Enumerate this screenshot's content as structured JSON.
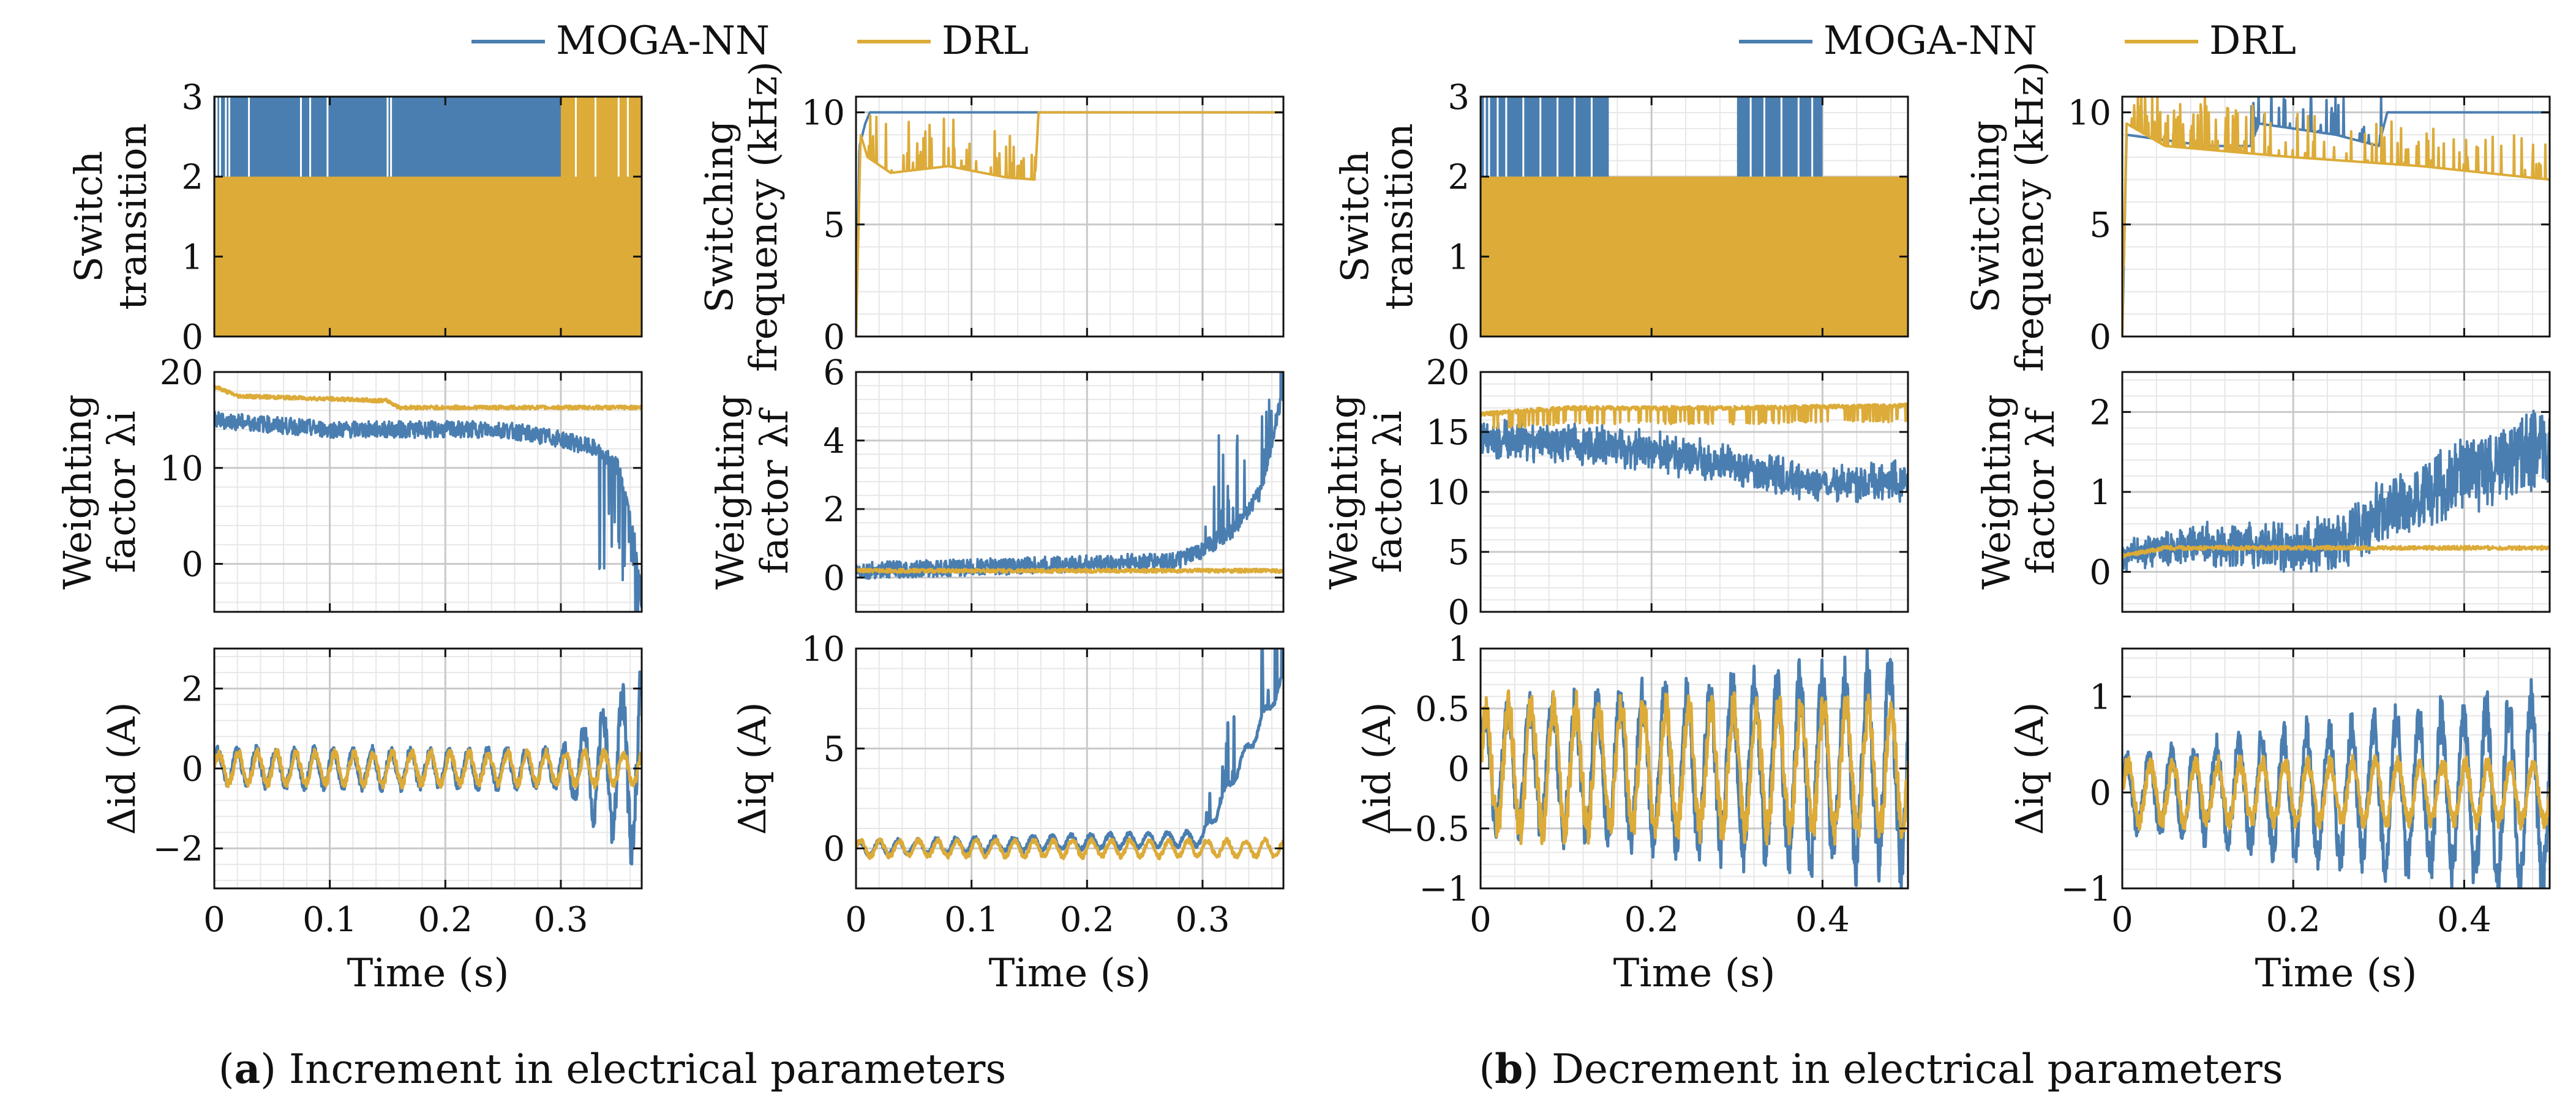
{
  "colors": {
    "moga_nn": "#4a7eb0",
    "drl": "#dcab38",
    "grid_major": "#c9c9c9",
    "grid_minor": "#e7e7e7"
  },
  "legend": {
    "series_a": "MOGA-NN",
    "series_b": "DRL"
  },
  "captions": {
    "a": {
      "letter": "a",
      "text": "Increment in electrical parameters"
    },
    "b": {
      "letter": "b",
      "text": "Decrement in electrical parameters"
    }
  },
  "x_axis_label": "Time (s)",
  "chart_data": [
    {
      "id": "a-switch",
      "type": "area",
      "panel": "a",
      "ylabel_lines": [
        "Switch",
        "transition"
      ],
      "xlim": [
        0,
        0.37
      ],
      "ylim": [
        0,
        3
      ],
      "yticks": [
        0,
        1,
        2,
        3
      ],
      "xticks": [
        0,
        0.1,
        0.2,
        0.3
      ],
      "series": [
        {
          "name": "MOGA-NN",
          "description": "switches between 2 and 3 for t < 0.30 s",
          "values": [
            [
              0,
              3
            ],
            [
              0.3,
              3
            ]
          ]
        },
        {
          "name": "DRL",
          "description": "switches between 0 and 2 throughout; reaches 3 after 0.30 s",
          "values": [
            [
              0,
              2
            ],
            [
              0.3,
              2
            ],
            [
              0.3,
              3
            ],
            [
              0.37,
              3
            ]
          ]
        }
      ]
    },
    {
      "id": "a-freq",
      "type": "line",
      "panel": "a",
      "ylabel_lines": [
        "Switching",
        "frequency (kHz)"
      ],
      "xlim": [
        0,
        0.37
      ],
      "ylim": [
        0,
        10.7
      ],
      "yticks": [
        0,
        5,
        10
      ],
      "xticks": [
        0,
        0.1,
        0.2,
        0.3
      ],
      "series": [
        {
          "name": "MOGA-NN",
          "values": [
            [
              0,
              0
            ],
            [
              0.003,
              8.5
            ],
            [
              0.008,
              9.5
            ],
            [
              0.012,
              10
            ],
            [
              0.37,
              10
            ]
          ]
        },
        {
          "name": "DRL",
          "values": [
            [
              0,
              0
            ],
            [
              0.004,
              9
            ],
            [
              0.01,
              8
            ],
            [
              0.03,
              7.3
            ],
            [
              0.08,
              7.6
            ],
            [
              0.13,
              7.1
            ],
            [
              0.155,
              7
            ],
            [
              0.158,
              10
            ],
            [
              0.37,
              10
            ]
          ]
        }
      ]
    },
    {
      "id": "a-lambda-i",
      "type": "line",
      "panel": "a",
      "ylabel_lines": [
        "Weighting",
        "factor λi"
      ],
      "xlim": [
        0,
        0.37
      ],
      "ylim": [
        -5,
        20
      ],
      "yticks": [
        0,
        10,
        20
      ],
      "xticks": [
        0,
        0.1,
        0.2,
        0.3
      ],
      "series": [
        {
          "name": "MOGA-NN",
          "values": [
            [
              0,
              15
            ],
            [
              0.1,
              14
            ],
            [
              0.2,
              14
            ],
            [
              0.25,
              14
            ],
            [
              0.3,
              13
            ],
            [
              0.33,
              12
            ],
            [
              0.35,
              10
            ],
            [
              0.365,
              2
            ],
            [
              0.37,
              -4
            ]
          ]
        },
        {
          "name": "DRL",
          "values": [
            [
              0,
              18.5
            ],
            [
              0.02,
              17.5
            ],
            [
              0.15,
              17
            ],
            [
              0.16,
              16.3
            ],
            [
              0.37,
              16.3
            ]
          ]
        }
      ]
    },
    {
      "id": "a-lambda-f",
      "type": "line",
      "panel": "a",
      "ylabel_lines": [
        "Weighting",
        "factor λf"
      ],
      "xlim": [
        0,
        0.37
      ],
      "ylim": [
        -1,
        6
      ],
      "yticks": [
        0,
        2,
        4,
        6
      ],
      "xticks": [
        0,
        0.1,
        0.2,
        0.3
      ],
      "series": [
        {
          "name": "MOGA-NN",
          "values": [
            [
              0,
              0.2
            ],
            [
              0.1,
              0.3
            ],
            [
              0.2,
              0.4
            ],
            [
              0.28,
              0.5
            ],
            [
              0.3,
              0.8
            ],
            [
              0.33,
              1.5
            ],
            [
              0.35,
              2.5
            ],
            [
              0.37,
              5.5
            ]
          ]
        },
        {
          "name": "DRL",
          "values": [
            [
              0,
              0.2
            ],
            [
              0.37,
              0.2
            ]
          ]
        }
      ]
    },
    {
      "id": "a-delta-id",
      "type": "line",
      "panel": "a",
      "ylabel": "Δid (A)",
      "xlim": [
        0,
        0.37
      ],
      "ylim": [
        -3,
        3
      ],
      "yticks": [
        -2,
        0,
        2
      ],
      "xticks": [
        0,
        0.1,
        0.2,
        0.3
      ],
      "xlabel": "Time (s)",
      "series": [
        {
          "name": "MOGA-NN",
          "description": "oscillating ±0.5 A, growing to about ±3 A near 0.37 s",
          "values": [
            [
              0,
              0
            ],
            [
              0.3,
              0
            ],
            [
              0.37,
              0
            ]
          ]
        },
        {
          "name": "DRL",
          "description": "oscillating about ±0.4 A",
          "values": [
            [
              0,
              0
            ],
            [
              0.37,
              0
            ]
          ]
        }
      ]
    },
    {
      "id": "a-delta-iq",
      "type": "line",
      "panel": "a",
      "ylabel": "Δiq (A)",
      "xlim": [
        0,
        0.37
      ],
      "ylim": [
        -2,
        10
      ],
      "yticks": [
        0,
        5,
        10
      ],
      "xticks": [
        0,
        0.1,
        0.2,
        0.3
      ],
      "xlabel": "Time (s)",
      "series": [
        {
          "name": "MOGA-NN",
          "description": "near 0, spikes up to about 8 A after 0.30 s",
          "values": [
            [
              0,
              0
            ],
            [
              0.3,
              0.5
            ],
            [
              0.37,
              8.5
            ]
          ]
        },
        {
          "name": "DRL",
          "description": "oscillating about ±0.4 A",
          "values": [
            [
              0,
              0
            ],
            [
              0.37,
              0
            ]
          ]
        }
      ]
    },
    {
      "id": "b-switch",
      "type": "area",
      "panel": "b",
      "ylabel_lines": [
        "Switch",
        "transition"
      ],
      "xlim": [
        0,
        0.5
      ],
      "ylim": [
        0,
        3
      ],
      "yticks": [
        0,
        1,
        2,
        3
      ],
      "xticks": [
        0,
        0.2,
        0.4
      ],
      "series": [
        {
          "name": "MOGA-NN",
          "description": "reaches 3 during 0–0.15 s and 0.30–0.40 s",
          "values": [
            [
              0,
              3
            ],
            [
              0.15,
              3
            ],
            [
              0.3,
              3
            ],
            [
              0.4,
              3
            ]
          ]
        },
        {
          "name": "DRL",
          "description": "switches between 0 and 2 throughout",
          "values": [
            [
              0,
              2
            ],
            [
              0.5,
              2
            ]
          ]
        }
      ]
    },
    {
      "id": "b-freq",
      "type": "line",
      "panel": "b",
      "ylabel_lines": [
        "Switching",
        "frequency (kHz)"
      ],
      "xlim": [
        0,
        0.5
      ],
      "ylim": [
        0,
        10.7
      ],
      "yticks": [
        0,
        5,
        10
      ],
      "xticks": [
        0,
        0.2,
        0.4
      ],
      "series": [
        {
          "name": "MOGA-NN",
          "values": [
            [
              0,
              0
            ],
            [
              0.005,
              9
            ],
            [
              0.1,
              8.5
            ],
            [
              0.15,
              8.5
            ],
            [
              0.16,
              9.5
            ],
            [
              0.25,
              9
            ],
            [
              0.3,
              8.5
            ],
            [
              0.31,
              10
            ],
            [
              0.5,
              10
            ]
          ]
        },
        {
          "name": "DRL",
          "values": [
            [
              0,
              0
            ],
            [
              0.005,
              9.5
            ],
            [
              0.05,
              8.5
            ],
            [
              0.2,
              8
            ],
            [
              0.35,
              7.6
            ],
            [
              0.5,
              7
            ]
          ]
        }
      ]
    },
    {
      "id": "b-lambda-i",
      "type": "line",
      "panel": "b",
      "ylabel_lines": [
        "Weighting",
        "factor λi"
      ],
      "xlim": [
        0,
        0.5
      ],
      "ylim": [
        0,
        20
      ],
      "yticks": [
        0,
        5,
        10,
        15,
        20
      ],
      "xticks": [
        0,
        0.2,
        0.4
      ],
      "series": [
        {
          "name": "MOGA-NN",
          "values": [
            [
              0,
              14.5
            ],
            [
              0.1,
              14
            ],
            [
              0.2,
              13.5
            ],
            [
              0.3,
              12
            ],
            [
              0.4,
              10.5
            ],
            [
              0.5,
              11
            ]
          ]
        },
        {
          "name": "DRL",
          "values": [
            [
              0,
              16.5
            ],
            [
              0.1,
              17
            ],
            [
              0.3,
              17
            ],
            [
              0.5,
              17.2
            ]
          ]
        }
      ]
    },
    {
      "id": "b-lambda-f",
      "type": "line",
      "panel": "b",
      "ylabel_lines": [
        "Weighting",
        "factor λf"
      ],
      "xlim": [
        0,
        0.5
      ],
      "ylim": [
        -0.5,
        2.5
      ],
      "yticks": [
        0,
        1,
        2
      ],
      "xticks": [
        0,
        0.2,
        0.4
      ],
      "series": [
        {
          "name": "MOGA-NN",
          "values": [
            [
              0,
              0.2
            ],
            [
              0.1,
              0.35
            ],
            [
              0.2,
              0.3
            ],
            [
              0.25,
              0.35
            ],
            [
              0.3,
              0.7
            ],
            [
              0.4,
              1.2
            ],
            [
              0.5,
              1.6
            ]
          ]
        },
        {
          "name": "DRL",
          "values": [
            [
              0,
              0.2
            ],
            [
              0.05,
              0.3
            ],
            [
              0.5,
              0.3
            ]
          ]
        }
      ]
    },
    {
      "id": "b-delta-id",
      "type": "line",
      "panel": "b",
      "ylabel": "Δid (A)",
      "xlim": [
        0,
        0.5
      ],
      "ylim": [
        -1,
        1
      ],
      "yticks": [
        -1,
        -0.5,
        0,
        0.5,
        1
      ],
      "xticks": [
        0,
        0.2,
        0.4
      ],
      "xlabel": "Time (s)",
      "series": [
        {
          "name": "MOGA-NN",
          "description": "oscillating ±0.5 A, growing to about ±0.8 A",
          "values": [
            [
              0,
              0
            ],
            [
              0.5,
              0
            ]
          ]
        },
        {
          "name": "DRL",
          "description": "oscillating about ±0.5 A",
          "values": [
            [
              0,
              0
            ],
            [
              0.5,
              0
            ]
          ]
        }
      ]
    },
    {
      "id": "b-delta-iq",
      "type": "line",
      "panel": "b",
      "ylabel": "Δiq (A)",
      "xlim": [
        0,
        0.5
      ],
      "ylim": [
        -1,
        1.5
      ],
      "yticks": [
        -1,
        0,
        1
      ],
      "xticks": [
        0,
        0.2,
        0.4
      ],
      "xlabel": "Time (s)",
      "series": [
        {
          "name": "MOGA-NN",
          "description": "oscillating ±0.4 A, growing to about ±1 A",
          "values": [
            [
              0,
              0
            ],
            [
              0.5,
              0
            ]
          ]
        },
        {
          "name": "DRL",
          "description": "oscillating about ±0.3 A",
          "values": [
            [
              0,
              0
            ],
            [
              0.5,
              0
            ]
          ]
        }
      ]
    }
  ]
}
